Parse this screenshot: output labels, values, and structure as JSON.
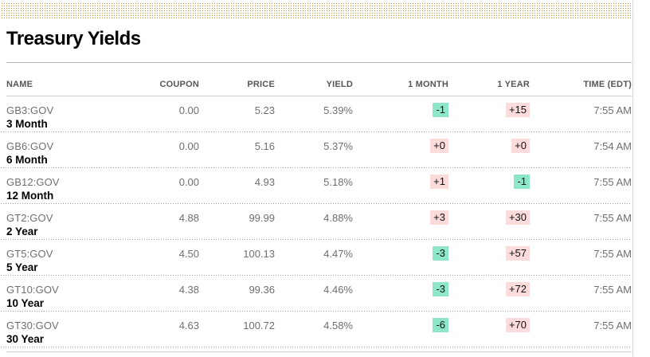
{
  "page": {
    "title": "Treasury Yields"
  },
  "table": {
    "columns": [
      "NAME",
      "COUPON",
      "PRICE",
      "YIELD",
      "1 MONTH",
      "1 YEAR",
      "TIME (EDT)"
    ],
    "rows": [
      {
        "ticker": "GB3:GOV",
        "tenor": "3 Month",
        "coupon": "0.00",
        "price": "5.23",
        "yield": "5.39%",
        "one_month": {
          "text": "-1",
          "tone": "negative"
        },
        "one_year": {
          "text": "+15",
          "tone": "positive"
        },
        "time": "7:55 AM"
      },
      {
        "ticker": "GB6:GOV",
        "tenor": "6 Month",
        "coupon": "0.00",
        "price": "5.16",
        "yield": "5.37%",
        "one_month": {
          "text": "+0",
          "tone": "positive"
        },
        "one_year": {
          "text": "+0",
          "tone": "positive"
        },
        "time": "7:54 AM"
      },
      {
        "ticker": "GB12:GOV",
        "tenor": "12 Month",
        "coupon": "0.00",
        "price": "4.93",
        "yield": "5.18%",
        "one_month": {
          "text": "+1",
          "tone": "positive"
        },
        "one_year": {
          "text": "-1",
          "tone": "negative"
        },
        "time": "7:55 AM"
      },
      {
        "ticker": "GT2:GOV",
        "tenor": "2 Year",
        "coupon": "4.88",
        "price": "99.99",
        "yield": "4.88%",
        "one_month": {
          "text": "+3",
          "tone": "positive"
        },
        "one_year": {
          "text": "+30",
          "tone": "positive"
        },
        "time": "7:55 AM"
      },
      {
        "ticker": "GT5:GOV",
        "tenor": "5 Year",
        "coupon": "4.50",
        "price": "100.13",
        "yield": "4.47%",
        "one_month": {
          "text": "-3",
          "tone": "negative"
        },
        "one_year": {
          "text": "+57",
          "tone": "positive"
        },
        "time": "7:55 AM"
      },
      {
        "ticker": "GT10:GOV",
        "tenor": "10 Year",
        "coupon": "4.38",
        "price": "99.36",
        "yield": "4.46%",
        "one_month": {
          "text": "-3",
          "tone": "negative"
        },
        "one_year": {
          "text": "+72",
          "tone": "positive"
        },
        "time": "7:55 AM"
      },
      {
        "ticker": "GT30:GOV",
        "tenor": "30 Year",
        "coupon": "4.63",
        "price": "100.72",
        "yield": "4.58%",
        "one_month": {
          "text": "-6",
          "tone": "negative"
        },
        "one_year": {
          "text": "+70",
          "tone": "positive"
        },
        "time": "7:55 AM"
      }
    ]
  },
  "colors": {
    "accent_dots": "#c9912f",
    "positive_badge_bg": "#fcdbdb",
    "negative_badge_bg": "#8de7c8"
  }
}
